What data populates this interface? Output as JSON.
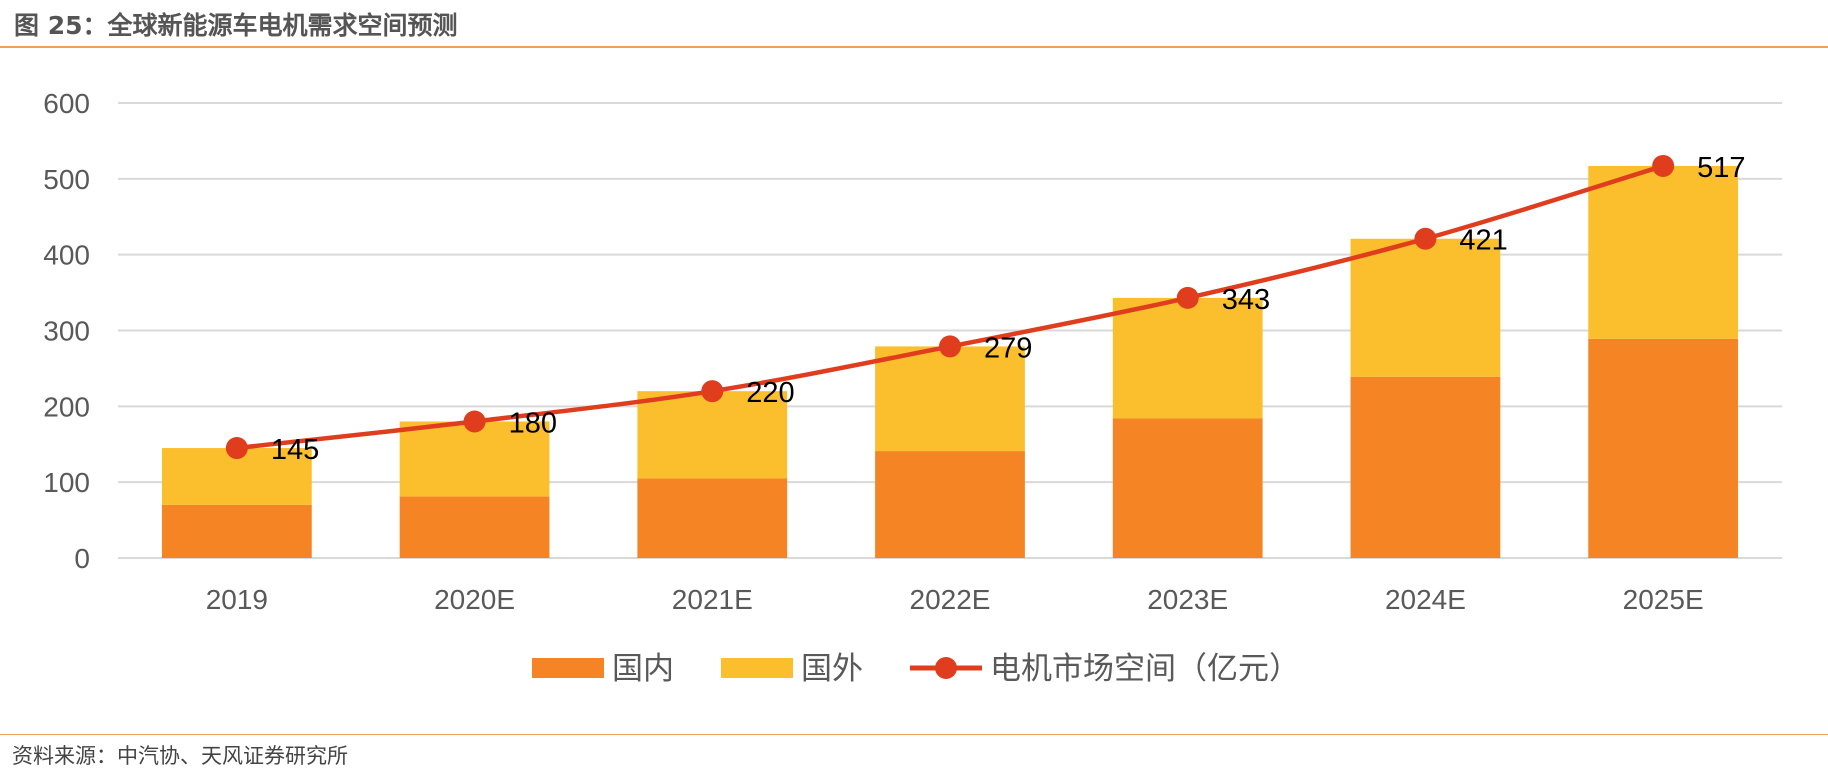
{
  "figure": {
    "title": "图 25：全球新能源车电机需求空间预测",
    "source": "资料来源：中汽协、天风证券研究所"
  },
  "colors": {
    "domestic": "#F48424",
    "overseas": "#FBBE2C",
    "line": "#E03D1F",
    "grid": "#D9D9D9",
    "axis_text": "#595959",
    "label_text": "#000000",
    "rule": "#F0A050"
  },
  "chart_data": {
    "type": "bar",
    "stacked": true,
    "title": "图 25：全球新能源车电机需求空间预测",
    "xlabel": "",
    "ylabel": "",
    "ylim": [
      0,
      600
    ],
    "yticks": [
      0,
      100,
      200,
      300,
      400,
      500,
      600
    ],
    "grid": true,
    "legend_position": "bottom",
    "categories": [
      "2019",
      "2020E",
      "2021E",
      "2022E",
      "2023E",
      "2024E",
      "2025E"
    ],
    "series": [
      {
        "name": "国内",
        "type": "bar",
        "values": [
          70,
          81,
          105,
          141,
          184,
          239,
          289
        ]
      },
      {
        "name": "国外",
        "type": "bar",
        "values": [
          75,
          99,
          115,
          138,
          159,
          182,
          228
        ]
      },
      {
        "name": "电机市场空间（亿元）",
        "type": "line",
        "values": [
          145,
          180,
          220,
          279,
          343,
          421,
          517
        ],
        "data_labels": [
          "145",
          "180",
          "220",
          "279",
          "343",
          "421",
          "517"
        ]
      }
    ]
  }
}
